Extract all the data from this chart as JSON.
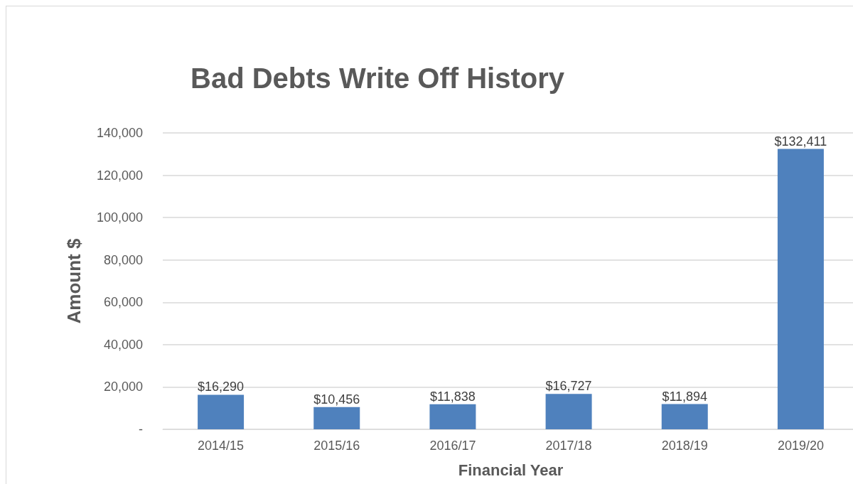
{
  "chart_data": {
    "type": "bar",
    "title": "Bad Debts Write Off History",
    "xlabel": "Financial Year",
    "ylabel": "Amount $",
    "categories": [
      "2014/15",
      "2015/16",
      "2016/17",
      "2017/18",
      "2018/19",
      "2019/20"
    ],
    "values": [
      16290,
      10456,
      11838,
      16727,
      11894,
      132411
    ],
    "value_labels": [
      "$16,290",
      "$10,456",
      "$11,838",
      "$16,727",
      "$11,894",
      "$132,411"
    ],
    "color": "#4f81bd",
    "ylim": [
      0,
      140000
    ],
    "yticks": [
      {
        "value": 0,
        "label": "-"
      },
      {
        "value": 20000,
        "label": "20,000"
      },
      {
        "value": 40000,
        "label": "40,000"
      },
      {
        "value": 60000,
        "label": "60,000"
      },
      {
        "value": 80000,
        "label": "80,000"
      },
      {
        "value": 100000,
        "label": "100,000"
      },
      {
        "value": 120000,
        "label": "120,000"
      },
      {
        "value": 140000,
        "label": "140,000"
      }
    ],
    "grid": "y"
  }
}
